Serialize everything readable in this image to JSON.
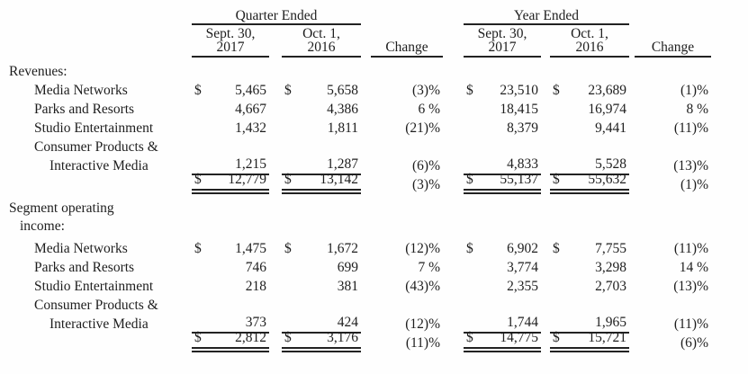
{
  "page": {
    "background": "#fefefe",
    "text_color": "#1e1e1e",
    "rule_color": "#222222"
  },
  "header": {
    "quarter_group": "Quarter Ended",
    "year_group": "Year Ended",
    "q_col1_l1": "Sept. 30,",
    "q_col1_l2": "2017",
    "q_col2_l1": "Oct. 1,",
    "q_col2_l2": "2016",
    "y_col1_l1": "Sept. 30,",
    "y_col1_l2": "2017",
    "y_col2_l1": "Oct. 1,",
    "y_col2_l2": "2016",
    "change_q": "Change",
    "change_y": "Change"
  },
  "sections": [
    {
      "label_lines": [
        "Revenues:"
      ],
      "rows": [
        {
          "label_lines": [
            "Media Networks"
          ],
          "q17_cur": "$",
          "q17": "5,465",
          "q16_cur": "$",
          "q16": "5,658",
          "qchg": "(3)%",
          "y17_cur": "$",
          "y17": "23,510",
          "y16_cur": "$",
          "y16": "23,689",
          "ychg": "(1)%"
        },
        {
          "label_lines": [
            "Parks and Resorts"
          ],
          "q17": "4,667",
          "q16": "4,386",
          "qchg": "6 %",
          "y17": "18,415",
          "y16": "16,974",
          "ychg": "8 %"
        },
        {
          "label_lines": [
            "Studio Entertainment"
          ],
          "q17": "1,432",
          "q16": "1,811",
          "qchg": "(21)%",
          "y17": "8,379",
          "y16": "9,441",
          "ychg": "(11)%"
        },
        {
          "label_lines": [
            "Consumer Products &",
            "Interactive Media"
          ],
          "q17": "1,215",
          "q16": "1,287",
          "qchg": "(6)%",
          "y17": "4,833",
          "y16": "5,528",
          "ychg": "(13)%"
        }
      ],
      "total": {
        "q17_cur": "$",
        "q17": "12,779",
        "q16_cur": "$",
        "q16": "13,142",
        "qchg": "(3)%",
        "y17_cur": "$",
        "y17": "55,137",
        "y16_cur": "$",
        "y16": "55,632",
        "ychg": "(1)%"
      }
    },
    {
      "label_lines": [
        "Segment operating",
        "income:"
      ],
      "rows": [
        {
          "label_lines": [
            "Media Networks"
          ],
          "q17_cur": "$",
          "q17": "1,475",
          "q16_cur": "$",
          "q16": "1,672",
          "qchg": "(12)%",
          "y17_cur": "$",
          "y17": "6,902",
          "y16_cur": "$",
          "y16": "7,755",
          "ychg": "(11)%"
        },
        {
          "label_lines": [
            "Parks and Resorts"
          ],
          "q17": "746",
          "q16": "699",
          "qchg": "7 %",
          "y17": "3,774",
          "y16": "3,298",
          "ychg": "14 %"
        },
        {
          "label_lines": [
            "Studio Entertainment"
          ],
          "q17": "218",
          "q16": "381",
          "qchg": "(43)%",
          "y17": "2,355",
          "y16": "2,703",
          "ychg": "(13)%"
        },
        {
          "label_lines": [
            "Consumer Products &",
            "Interactive Media"
          ],
          "q17": "373",
          "q16": "424",
          "qchg": "(12)%",
          "y17": "1,744",
          "y16": "1,965",
          "ychg": "(11)%"
        }
      ],
      "total": {
        "q17_cur": "$",
        "q17": "2,812",
        "q16_cur": "$",
        "q16": "3,176",
        "qchg": "(11)%",
        "y17_cur": "$",
        "y17": "14,775",
        "y16_cur": "$",
        "y16": "15,721",
        "ychg": "(6)%"
      }
    }
  ]
}
